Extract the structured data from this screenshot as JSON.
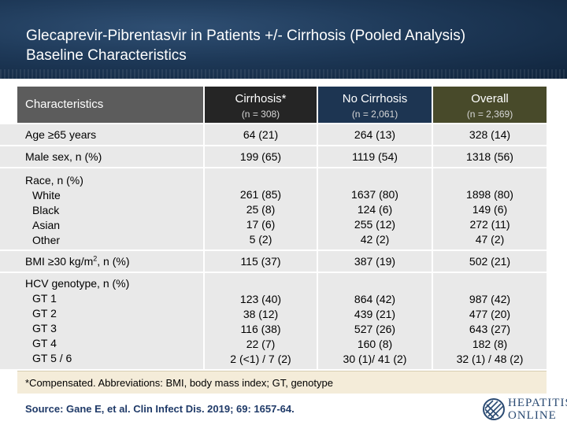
{
  "title": {
    "line1": "Glecaprevir-Pibrentasvir in Patients +/- Cirrhosis (Pooled Analysis)",
    "line2": "Baseline Characteristics"
  },
  "table": {
    "header": {
      "characteristics": "Characteristics",
      "cols": [
        {
          "name": "Cirrhosis*",
          "n": "(n = 308)"
        },
        {
          "name": "No Cirrhosis",
          "n": "(n = 2,061)"
        },
        {
          "name": "Overall",
          "n": "(n = 2,369)"
        }
      ]
    },
    "rows": {
      "age": {
        "label": "Age ≥65 years",
        "values": [
          "64 (21)",
          "264 (13)",
          "328 (14)"
        ]
      },
      "male": {
        "label": "Male sex, n (%)",
        "values": [
          "199 (65)",
          "1119 (54)",
          "1318 (56)"
        ]
      },
      "race": {
        "label": "Race, n (%)",
        "sublabels": [
          "White",
          "Black",
          "Asian",
          "Other"
        ],
        "cols": [
          [
            "261 (85)",
            "25 (8)",
            "17 (6)",
            "5 (2)"
          ],
          [
            "1637 (80)",
            "124 (6)",
            "255 (12)",
            "42 (2)"
          ],
          [
            "1898 (80)",
            "149 (6)",
            "272 (11)",
            "47 (2)"
          ]
        ]
      },
      "bmi": {
        "label_pre": "BMI ≥30 kg/m",
        "label_sup": "2",
        "label_post": ", n (%)",
        "values": [
          "115 (37)",
          "387 (19)",
          "502 (21)"
        ]
      },
      "hcv": {
        "label": "HCV genotype, n (%)",
        "sublabels": [
          "GT 1",
          "GT 2",
          "GT 3",
          "GT 4",
          "GT 5 / 6"
        ],
        "cols": [
          [
            "123 (40)",
            "38 (12)",
            "116 (38)",
            "22 (7)",
            "2 (<1) / 7 (2)"
          ],
          [
            "864 (42)",
            "439 (21)",
            "527 (26)",
            "160 (8)",
            "30 (1)/ 41 (2)"
          ],
          [
            "987 (42)",
            "477 (20)",
            "643 (27)",
            "182 (8)",
            "32 (1) / 48 (2)"
          ]
        ]
      }
    }
  },
  "footnote": "*Compensated. Abbreviations: BMI, body mass index; GT, genotype",
  "source": "Source: Gane E, et al. Clin Infect Dis. 2019; 69: 1657-64.",
  "logo": {
    "line1": "HEPATITIS C",
    "line2": "ONLINE"
  }
}
